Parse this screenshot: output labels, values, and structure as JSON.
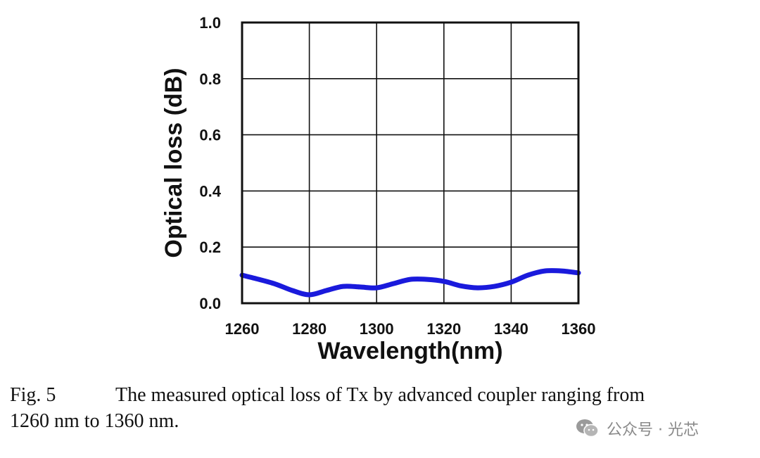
{
  "chart_data": {
    "type": "line",
    "title": "",
    "xlabel": "Wavelength(nm)",
    "ylabel": "Optical loss (dB)",
    "xlim": [
      1260,
      1360
    ],
    "ylim": [
      0.0,
      1.0
    ],
    "x_ticks": [
      1260,
      1280,
      1300,
      1320,
      1340,
      1360
    ],
    "y_ticks": [
      0.0,
      0.2,
      0.4,
      0.6,
      0.8,
      1.0
    ],
    "x_tick_labels": [
      "1260",
      "1280",
      "1300",
      "1320",
      "1340",
      "1360"
    ],
    "y_tick_labels": [
      "0.0",
      "0.2",
      "0.4",
      "0.6",
      "0.8",
      "1.0"
    ],
    "grid": true,
    "series": [
      {
        "name": "Optical loss",
        "color": "#1a1adc",
        "x": [
          1260,
          1265,
          1270,
          1275,
          1280,
          1285,
          1290,
          1295,
          1300,
          1305,
          1310,
          1315,
          1320,
          1325,
          1330,
          1335,
          1340,
          1345,
          1350,
          1355,
          1360
        ],
        "y": [
          0.1,
          0.085,
          0.068,
          0.045,
          0.03,
          0.045,
          0.06,
          0.058,
          0.055,
          0.07,
          0.085,
          0.085,
          0.078,
          0.062,
          0.055,
          0.06,
          0.075,
          0.1,
          0.115,
          0.115,
          0.108
        ]
      }
    ]
  },
  "caption": {
    "figure_label": "Fig. 5",
    "text_line1": "The measured optical loss of Tx by advanced coupler ranging from",
    "text_line2": "1260 nm to 1360 nm."
  },
  "watermark": {
    "text": "公众号 · 光芯",
    "icon": "wechat-icon"
  }
}
